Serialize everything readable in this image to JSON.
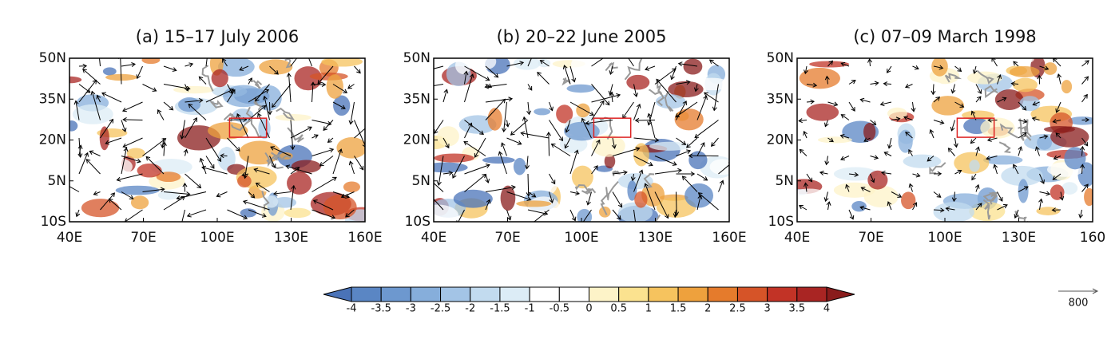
{
  "panels": [
    {
      "title": "(a) 15–17 July 2006",
      "xticks": [
        {
          "value": 40,
          "label": "40E"
        },
        {
          "value": 70,
          "label": "70E"
        },
        {
          "value": 100,
          "label": "100E"
        },
        {
          "value": 130,
          "label": "130E"
        },
        {
          "value": 160,
          "label": "160E"
        }
      ],
      "yticks": [
        {
          "value": 50,
          "label": "50N"
        },
        {
          "value": 35,
          "label": "35N"
        },
        {
          "value": 20,
          "label": "20N"
        },
        {
          "value": 5,
          "label": "5N"
        },
        {
          "value": -10,
          "label": "10S"
        }
      ]
    },
    {
      "title": "(b) 20–22 June 2005",
      "xticks": [
        {
          "value": 40,
          "label": "40E"
        },
        {
          "value": 70,
          "label": "70E"
        },
        {
          "value": 100,
          "label": "100E"
        },
        {
          "value": 130,
          "label": "130E"
        },
        {
          "value": 160,
          "label": "160E"
        }
      ],
      "yticks": [
        {
          "value": 50,
          "label": "50N"
        },
        {
          "value": 35,
          "label": "35N"
        },
        {
          "value": 20,
          "label": "20N"
        },
        {
          "value": 5,
          "label": "5N"
        },
        {
          "value": -10,
          "label": "10S"
        }
      ]
    },
    {
      "title": "(c) 07–09 March 1998",
      "xticks": [
        {
          "value": 40,
          "label": "40E"
        },
        {
          "value": 70,
          "label": "70E"
        },
        {
          "value": 100,
          "label": "100E"
        },
        {
          "value": 130,
          "label": "130E"
        },
        {
          "value": 160,
          "label": "160"
        }
      ],
      "yticks": [
        {
          "value": 50,
          "label": "50N"
        },
        {
          "value": 35,
          "label": "35N"
        },
        {
          "value": 20,
          "label": "20N"
        },
        {
          "value": 5,
          "label": "5N"
        },
        {
          "value": -10,
          "label": "10S"
        }
      ]
    }
  ],
  "colorbar": {
    "levels": [
      -4,
      -3.5,
      -3,
      -2.5,
      -2,
      -1.5,
      -1,
      -0.5,
      0,
      0.5,
      1,
      1.5,
      2,
      2.5,
      3,
      3.5,
      4
    ],
    "colors": [
      "#4a73b8",
      "#5a86c4",
      "#6d98cf",
      "#86aedb",
      "#a3c4e6",
      "#c2dbef",
      "#dcecf6",
      "#ffffff",
      "#ffffff",
      "#fdf3c8",
      "#fbe28f",
      "#f6c35e",
      "#eea13d",
      "#e57b2c",
      "#d65428",
      "#c23326",
      "#a92523",
      "#8a1c1c"
    ]
  },
  "reference_vector": {
    "label": "800"
  }
}
